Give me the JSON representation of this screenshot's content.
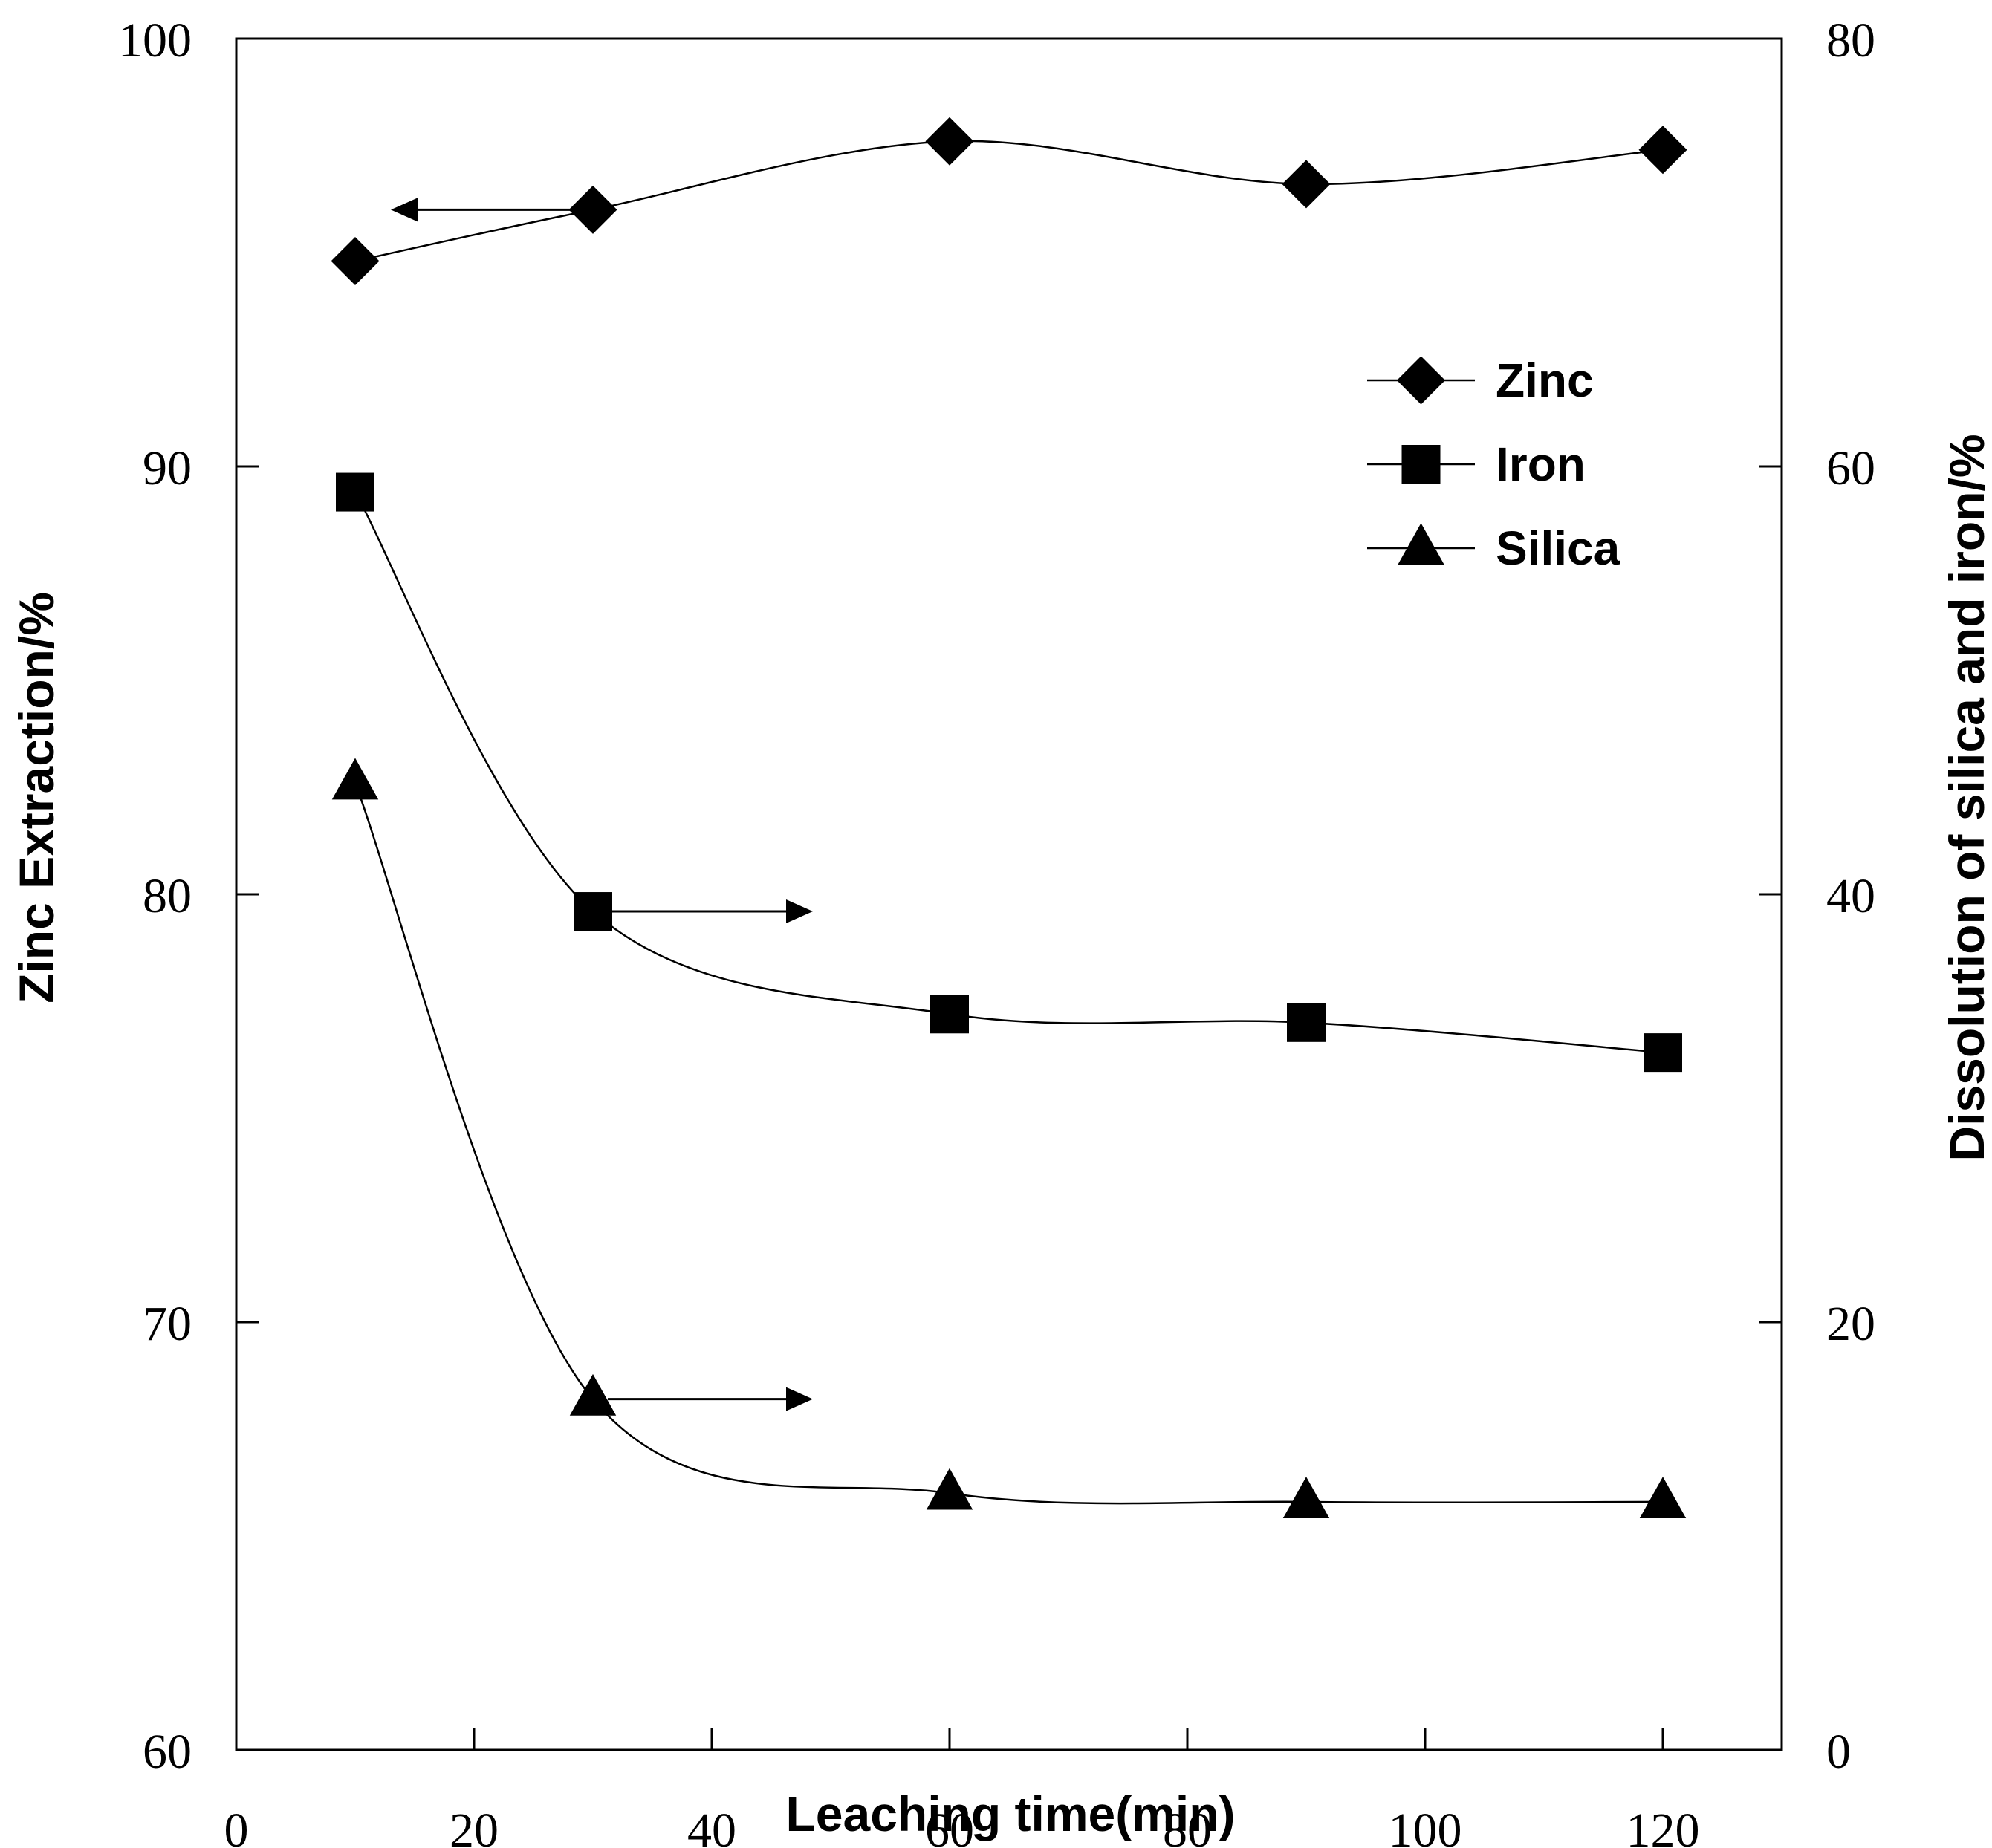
{
  "chart_data": {
    "type": "line",
    "title": "",
    "xlabel": "Leaching time(min)",
    "ylabel_left": "Zinc Extraction/%",
    "ylabel_right": "Dissolution of silica and iron/%",
    "xlim": [
      0,
      130
    ],
    "ylim_left": [
      60,
      100
    ],
    "ylim_right": [
      0,
      80
    ],
    "xticks": [
      0,
      20,
      40,
      60,
      80,
      100,
      120
    ],
    "yticks_left": [
      60,
      70,
      80,
      90,
      100
    ],
    "yticks_right": [
      0,
      20,
      40,
      60,
      80
    ],
    "grid": false,
    "legend_position": "top-right",
    "x": [
      10,
      30,
      60,
      90,
      120
    ],
    "series": [
      {
        "name": "Zinc",
        "axis": "left",
        "marker": "diamond",
        "values": [
          94.8,
          96.0,
          97.6,
          96.6,
          97.4
        ]
      },
      {
        "name": "Iron",
        "axis": "right",
        "marker": "square",
        "values": [
          58.8,
          39.2,
          34.4,
          34.0,
          32.6
        ]
      },
      {
        "name": "Silica",
        "axis": "right",
        "marker": "triangle",
        "values": [
          45.2,
          16.4,
          12.0,
          11.6,
          11.6
        ]
      }
    ],
    "annotations": [
      {
        "type": "arrow",
        "direction": "left",
        "points_to": "left axis",
        "series": "Zinc"
      },
      {
        "type": "arrow",
        "direction": "right",
        "points_to": "right axis",
        "series": "Iron"
      },
      {
        "type": "arrow",
        "direction": "right",
        "points_to": "right axis",
        "series": "Silica"
      }
    ]
  }
}
